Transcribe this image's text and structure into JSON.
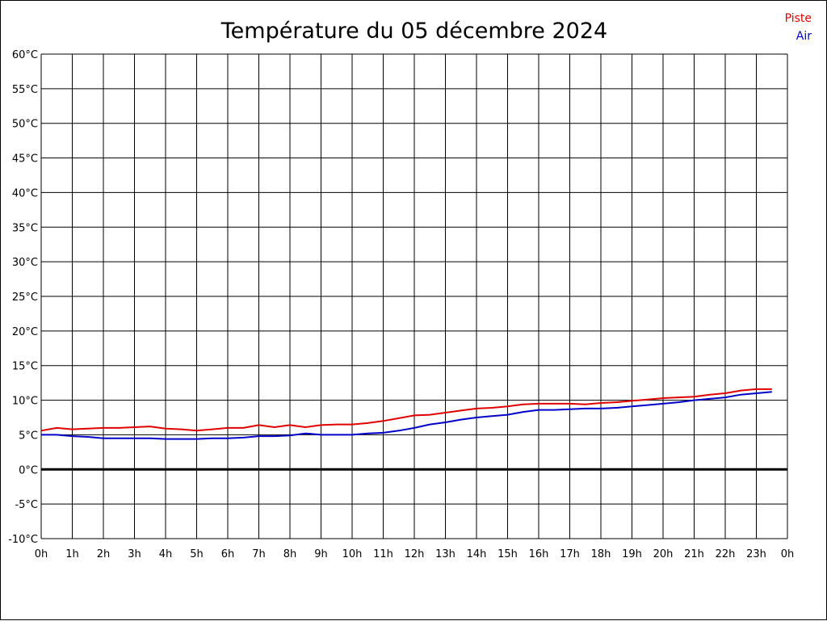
{
  "chart_data": {
    "type": "line",
    "title": "Température du 05 décembre 2024",
    "xlabel": "",
    "ylabel": "",
    "x_ticks": [
      "0h",
      "1h",
      "2h",
      "3h",
      "4h",
      "5h",
      "6h",
      "7h",
      "8h",
      "9h",
      "10h",
      "11h",
      "12h",
      "13h",
      "14h",
      "15h",
      "16h",
      "17h",
      "18h",
      "19h",
      "20h",
      "21h",
      "22h",
      "23h",
      "0h"
    ],
    "y_ticks": [
      "60°C",
      "55°C",
      "50°C",
      "45°C",
      "40°C",
      "35°C",
      "30°C",
      "25°C",
      "20°C",
      "15°C",
      "10°C",
      "5°C",
      "0°C",
      "-5°C",
      "-10°C"
    ],
    "xlim": [
      0,
      24
    ],
    "ylim": [
      -10,
      60
    ],
    "grid": true,
    "zero_line": true,
    "legend_position": "top-right",
    "series": [
      {
        "name": "Piste",
        "color": "#e00000",
        "x": [
          0,
          0.5,
          1,
          1.5,
          2,
          2.5,
          3,
          3.5,
          4,
          4.5,
          5,
          5.5,
          6,
          6.5,
          7,
          7.5,
          8,
          8.5,
          9,
          9.5,
          10,
          10.5,
          11,
          11.5,
          12,
          12.5,
          13,
          13.5,
          14,
          14.5,
          15,
          15.5,
          16,
          16.5,
          17,
          17.5,
          18,
          18.5,
          19,
          19.5,
          20,
          20.5,
          21,
          21.5,
          22,
          22.5,
          23,
          23.5
        ],
        "values": [
          5.6,
          6.0,
          5.8,
          5.9,
          6.0,
          6.0,
          6.1,
          6.2,
          5.9,
          5.8,
          5.6,
          5.8,
          6.0,
          6.0,
          6.4,
          6.1,
          6.4,
          6.1,
          6.4,
          6.5,
          6.5,
          6.7,
          7.0,
          7.4,
          7.8,
          7.9,
          8.2,
          8.5,
          8.8,
          8.9,
          9.1,
          9.4,
          9.5,
          9.5,
          9.5,
          9.4,
          9.6,
          9.7,
          9.9,
          10.1,
          10.3,
          10.4,
          10.5,
          10.8,
          11.0,
          11.4,
          11.6,
          11.6
        ]
      },
      {
        "name": "Air",
        "color": "#0000c8",
        "x": [
          0,
          0.5,
          1,
          1.5,
          2,
          2.5,
          3,
          3.5,
          4,
          4.5,
          5,
          5.5,
          6,
          6.5,
          7,
          7.5,
          8,
          8.5,
          9,
          9.5,
          10,
          10.5,
          11,
          11.5,
          12,
          12.5,
          13,
          13.5,
          14,
          14.5,
          15,
          15.5,
          16,
          16.5,
          17,
          17.5,
          18,
          18.5,
          19,
          19.5,
          20,
          20.5,
          21,
          21.5,
          22,
          22.5,
          23,
          23.5
        ],
        "values": [
          5.0,
          5.0,
          4.8,
          4.7,
          4.5,
          4.5,
          4.5,
          4.5,
          4.4,
          4.4,
          4.4,
          4.5,
          4.5,
          4.6,
          4.8,
          4.8,
          4.9,
          5.2,
          5.0,
          5.0,
          5.0,
          5.2,
          5.3,
          5.6,
          6.0,
          6.5,
          6.8,
          7.2,
          7.5,
          7.7,
          7.9,
          8.3,
          8.6,
          8.6,
          8.7,
          8.8,
          8.8,
          8.9,
          9.1,
          9.3,
          9.5,
          9.7,
          10.0,
          10.2,
          10.4,
          10.8,
          11.0,
          11.2
        ]
      }
    ]
  }
}
